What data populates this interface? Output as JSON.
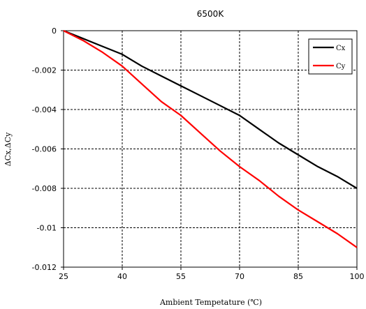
{
  "chart_data": {
    "type": "line",
    "title": "6500K",
    "xlabel": "Ambient Tempetature (℃)",
    "ylabel": "ΔCx,ΔCy",
    "x_ticks": [
      25,
      40,
      55,
      70,
      85,
      100
    ],
    "y_ticks": [
      0,
      -0.002,
      -0.004,
      -0.006,
      -0.008,
      -0.01,
      -0.012
    ],
    "y_tick_labels": [
      "0",
      "-0.002",
      "-0.004",
      "-0.006",
      "-0.008",
      "-0.01",
      "-0.012"
    ],
    "xlim": [
      25,
      100
    ],
    "ylim": [
      -0.012,
      0
    ],
    "grid": true,
    "legend_position": "top-right",
    "series": [
      {
        "name": "Cx",
        "color": "#000000",
        "x": [
          25,
          30,
          35,
          40,
          45,
          50,
          55,
          60,
          65,
          70,
          75,
          80,
          85,
          90,
          95,
          100
        ],
        "y": [
          0,
          -0.0004,
          -0.0008,
          -0.0012,
          -0.0018,
          -0.0023,
          -0.0028,
          -0.0033,
          -0.0038,
          -0.0043,
          -0.005,
          -0.0057,
          -0.0063,
          -0.0069,
          -0.0074,
          -0.008
        ]
      },
      {
        "name": "Cy",
        "color": "#ff0000",
        "x": [
          25,
          30,
          35,
          40,
          45,
          50,
          55,
          60,
          65,
          70,
          75,
          80,
          85,
          90,
          95,
          100
        ],
        "y": [
          0,
          -0.0005,
          -0.0011,
          -0.0018,
          -0.0027,
          -0.0036,
          -0.0043,
          -0.0052,
          -0.0061,
          -0.0069,
          -0.0076,
          -0.0084,
          -0.0091,
          -0.0097,
          -0.0103,
          -0.011
        ]
      }
    ]
  }
}
